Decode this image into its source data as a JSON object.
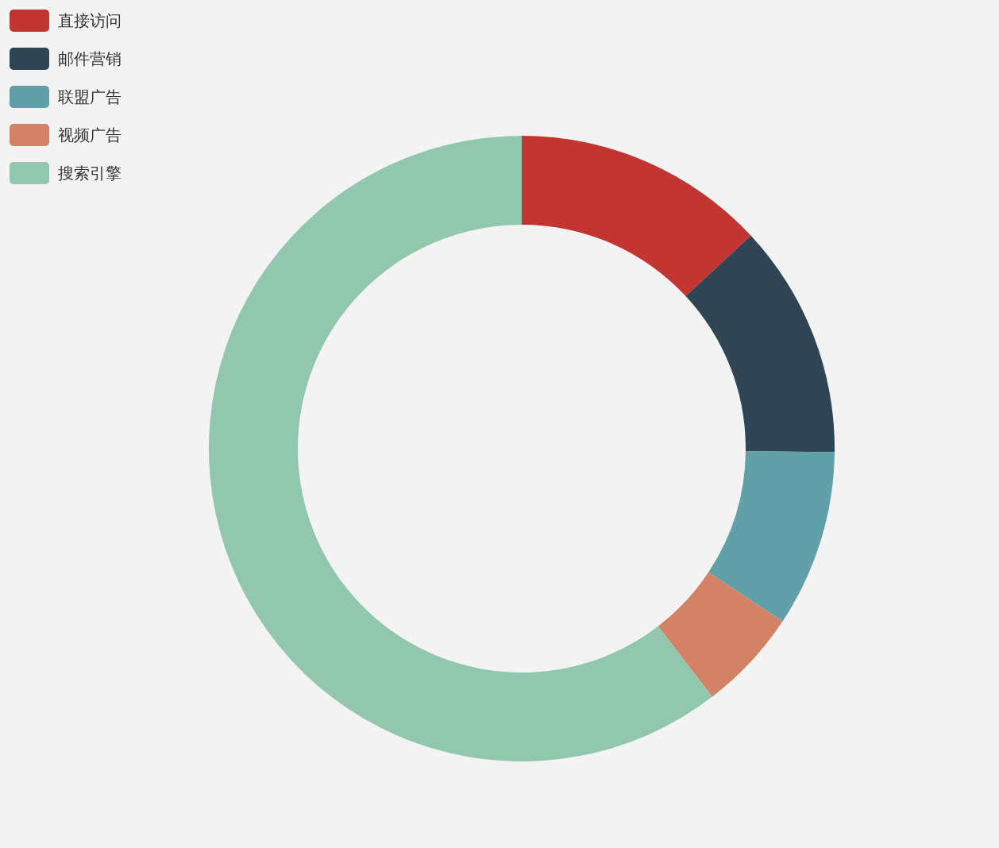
{
  "chart_data": {
    "type": "donut",
    "categories": [
      "直接访问",
      "邮件营销",
      "联盟广告",
      "视频广告",
      "搜索引擎"
    ],
    "values": [
      13.08,
      12.1,
      9.13,
      5.27,
      60.42
    ],
    "colors": [
      "#c23531",
      "#2f4554",
      "#61a0a8",
      "#d48265",
      "#91c7ae"
    ],
    "legend": "top left"
  }
}
